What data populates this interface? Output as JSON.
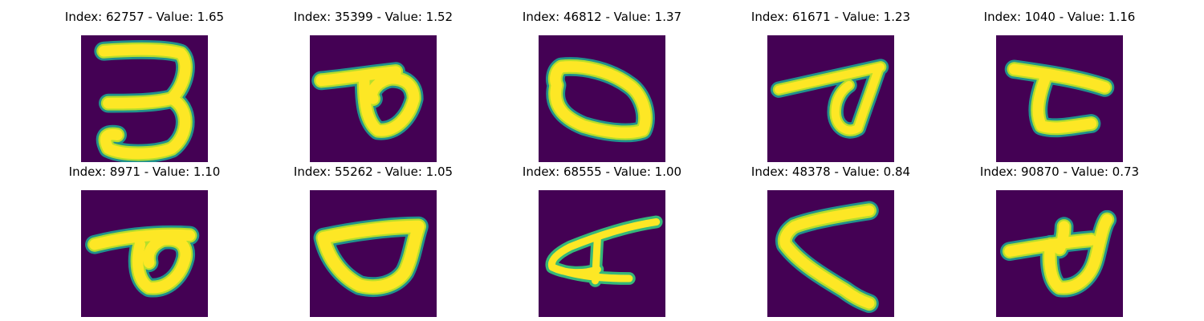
{
  "colormap": {
    "background": "#440154",
    "stroke_core": "#fde725",
    "stroke_edge_1": "#b5de2b",
    "stroke_edge_2": "#35b779",
    "stroke_edge_3": "#21918c",
    "stroke_edge_4": "#31688e"
  },
  "panels": [
    {
      "title": "Index: 62757 - Value: 1.65",
      "glyph": "handwritten-3-shape"
    },
    {
      "title": "Index: 35399 - Value: 1.52",
      "glyph": "loop-with-leftward-bar"
    },
    {
      "title": "Index: 46812 - Value: 1.37",
      "glyph": "tilted-closed-loop"
    },
    {
      "title": "Index: 61671 - Value: 1.23",
      "glyph": "loop-with-long-bar"
    },
    {
      "title": "Index: 1040 - Value: 1.16",
      "glyph": "bar-with-hook"
    },
    {
      "title": "Index: 8971 - Value: 1.10",
      "glyph": "loop-with-leftward-bar"
    },
    {
      "title": "Index: 55262 - Value: 1.05",
      "glyph": "wide-rounded-loop"
    },
    {
      "title": "Index: 68555 - Value: 1.00",
      "glyph": "crossed-a-shape"
    },
    {
      "title": "Index: 48378 - Value: 0.84",
      "glyph": "open-v-shape"
    },
    {
      "title": "Index: 90870 - Value: 0.73",
      "glyph": "loop-with-crossbar"
    }
  ]
}
